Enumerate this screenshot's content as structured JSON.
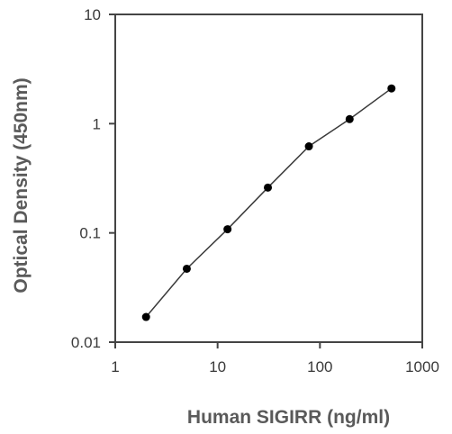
{
  "chart_data": {
    "type": "line",
    "title": "",
    "xlabel": "Human SIGIRR (ng/ml)",
    "ylabel": "Optical Density (450nm)",
    "x_scale": "log",
    "y_scale": "log",
    "xlim": [
      1,
      1000
    ],
    "ylim": [
      0.01,
      10
    ],
    "x_ticks": [
      {
        "value": 1,
        "label": "1"
      },
      {
        "value": 10,
        "label": "10"
      },
      {
        "value": 100,
        "label": "100"
      },
      {
        "value": 1000,
        "label": "1000"
      }
    ],
    "y_ticks": [
      {
        "value": 0.01,
        "label": "0.01"
      },
      {
        "value": 0.1,
        "label": "0.1"
      },
      {
        "value": 1,
        "label": "1"
      },
      {
        "value": 10,
        "label": "10"
      }
    ],
    "grid": false,
    "legend": "none",
    "series": [
      {
        "x": [
          2,
          5,
          12.5,
          31,
          78,
          195,
          500
        ],
        "y": [
          0.017,
          0.047,
          0.108,
          0.26,
          0.62,
          1.1,
          2.1
        ]
      }
    ],
    "colors": {
      "line": "#3a3a3a",
      "marker": "#000000",
      "axis": "#444444"
    }
  }
}
